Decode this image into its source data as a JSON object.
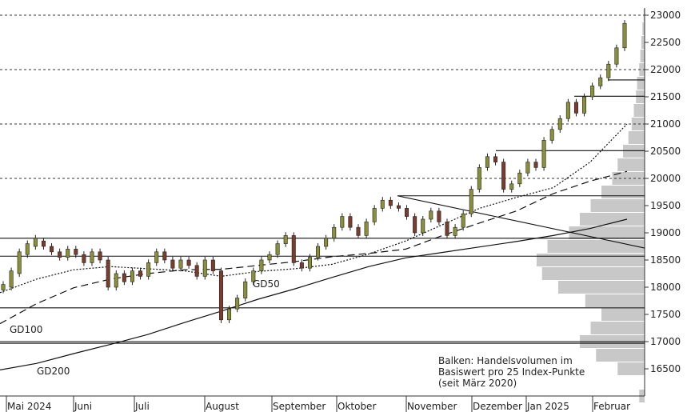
{
  "chart_data": {
    "type": "candlestick",
    "title": "",
    "xlabel": "",
    "ylabel": "",
    "ylim": [
      16000,
      23200
    ],
    "y_ticks": [
      16500,
      17000,
      17500,
      18000,
      18500,
      19000,
      19500,
      20000,
      20500,
      21000,
      21500,
      22000,
      22500,
      23000
    ],
    "y_tick_labels": [
      "16500",
      "17000",
      "17500",
      "18000",
      "18500",
      "19000",
      "19500",
      "20000",
      "20500",
      "21000",
      "21500",
      "22000",
      "22500",
      "23000"
    ],
    "x_ticks": [
      "Mai 2024",
      "Juni",
      "Juli",
      "August",
      "September",
      "Oktober",
      "November",
      "Dezember",
      "Jan 2025",
      "Februar"
    ],
    "dashed_gridlines": [
      20000,
      21000,
      22000,
      23000
    ],
    "support_resistance_lines": [
      {
        "from": "2024-05",
        "level": 16970
      },
      {
        "from": "2024-05",
        "level": 17000
      },
      {
        "from": "2024-05",
        "level": 17620
      },
      {
        "from": "2024-05",
        "level": 18570
      },
      {
        "from": "2024-05",
        "level": 18900
      },
      {
        "from": "2024-11",
        "level": 19680
      },
      {
        "from": "2024-12",
        "level": 20510
      },
      {
        "from": "2025-01",
        "level": 21510
      },
      {
        "from": "2025-02",
        "level": 21810
      }
    ],
    "trend_line": {
      "from": {
        "date": "2024-10-31",
        "value": 19680
      },
      "to": {
        "date": "2025-02-20",
        "value": 18720
      }
    },
    "moving_averages": [
      {
        "label": "GD50",
        "style": "dotted",
        "values": [
          17900,
          18150,
          18320,
          18380,
          18340,
          18300,
          18200,
          18290,
          18340,
          18420,
          18610,
          18850,
          19150,
          19450,
          19650,
          19830,
          20300,
          21000
        ]
      },
      {
        "label": "GD100",
        "style": "dashed",
        "values": [
          17330,
          17700,
          17990,
          18150,
          18250,
          18320,
          18330,
          18400,
          18470,
          18560,
          18620,
          18700,
          18950,
          19180,
          19400,
          19720,
          19950,
          20130
        ]
      },
      {
        "label": "GD200",
        "style": "solid",
        "values": [
          16480,
          16600,
          16780,
          16950,
          17130,
          17350,
          17560,
          17780,
          17970,
          18180,
          18380,
          18540,
          18640,
          18740,
          18840,
          18950,
          19080,
          19250
        ]
      }
    ],
    "ma_label_positions": [
      "GD50",
      "GD100",
      "GD200"
    ],
    "candles": [
      [
        17950,
        18050
      ],
      [
        18000,
        18300
      ],
      [
        18250,
        18650
      ],
      [
        18600,
        18800
      ],
      [
        18750,
        18900
      ],
      [
        18850,
        18750
      ],
      [
        18750,
        18650
      ],
      [
        18650,
        18550
      ],
      [
        18550,
        18700
      ],
      [
        18700,
        18600
      ],
      [
        18600,
        18450
      ],
      [
        18450,
        18650
      ],
      [
        18650,
        18500
      ],
      [
        18500,
        18000
      ],
      [
        18000,
        18250
      ],
      [
        18250,
        18100
      ],
      [
        18100,
        18300
      ],
      [
        18300,
        18200
      ],
      [
        18200,
        18450
      ],
      [
        18450,
        18650
      ],
      [
        18650,
        18500
      ],
      [
        18500,
        18350
      ],
      [
        18350,
        18500
      ],
      [
        18500,
        18400
      ],
      [
        18400,
        18200
      ],
      [
        18200,
        18500
      ],
      [
        18500,
        18300
      ],
      [
        18300,
        17400
      ],
      [
        17400,
        17600
      ],
      [
        17600,
        17800
      ],
      [
        17800,
        18100
      ],
      [
        18100,
        18300
      ],
      [
        18300,
        18500
      ],
      [
        18500,
        18600
      ],
      [
        18600,
        18800
      ],
      [
        18800,
        18950
      ],
      [
        18950,
        18450
      ],
      [
        18450,
        18350
      ],
      [
        18350,
        18550
      ],
      [
        18550,
        18750
      ],
      [
        18750,
        18900
      ],
      [
        18900,
        19100
      ],
      [
        19100,
        19300
      ],
      [
        19300,
        19100
      ],
      [
        19100,
        18950
      ],
      [
        18950,
        19200
      ],
      [
        19200,
        19450
      ],
      [
        19450,
        19600
      ],
      [
        19600,
        19500
      ],
      [
        19500,
        19450
      ],
      [
        19450,
        19300
      ],
      [
        19300,
        19000
      ],
      [
        19000,
        19250
      ],
      [
        19250,
        19400
      ],
      [
        19400,
        19200
      ],
      [
        19200,
        18950
      ],
      [
        18950,
        19100
      ],
      [
        19100,
        19350
      ],
      [
        19350,
        19800
      ],
      [
        19800,
        20200
      ],
      [
        20200,
        20400
      ],
      [
        20400,
        20300
      ],
      [
        20300,
        19800
      ],
      [
        19800,
        19900
      ],
      [
        19900,
        20100
      ],
      [
        20100,
        20300
      ],
      [
        20300,
        20200
      ],
      [
        20200,
        20700
      ],
      [
        20700,
        20900
      ],
      [
        20900,
        21100
      ],
      [
        21100,
        21400
      ],
      [
        21400,
        21200
      ],
      [
        21200,
        21500
      ],
      [
        21500,
        21700
      ],
      [
        21700,
        21850
      ],
      [
        21850,
        22100
      ],
      [
        22100,
        22400
      ],
      [
        22400,
        22850
      ]
    ],
    "volume_profile_note": "Balken: Handelsvolumen im Basiswert pro 25 Index-Punkte (seit März 2020)",
    "note_lines": [
      "Balken: Handelsvolumen im",
      "Basiswert pro 25 Index-Punkte",
      "(seit März 2020)"
    ],
    "volume_profile": [
      [
        16000,
        0.05
      ],
      [
        16500,
        0.25
      ],
      [
        16750,
        0.45
      ],
      [
        17000,
        0.6
      ],
      [
        17250,
        0.5
      ],
      [
        17500,
        0.4
      ],
      [
        17750,
        0.55
      ],
      [
        18000,
        0.8
      ],
      [
        18250,
        0.95
      ],
      [
        18500,
        1.0
      ],
      [
        18750,
        0.9
      ],
      [
        19000,
        0.7
      ],
      [
        19250,
        0.6
      ],
      [
        19500,
        0.5
      ],
      [
        19750,
        0.4
      ],
      [
        20000,
        0.3
      ],
      [
        20250,
        0.25
      ],
      [
        20500,
        0.2
      ],
      [
        20750,
        0.15
      ],
      [
        21000,
        0.12
      ],
      [
        21250,
        0.1
      ],
      [
        21500,
        0.08
      ],
      [
        21750,
        0.07
      ],
      [
        22000,
        0.05
      ],
      [
        22250,
        0.04
      ],
      [
        22500,
        0.03
      ],
      [
        22750,
        0.02
      ],
      [
        23000,
        0.01
      ]
    ],
    "colors": {
      "up": "#8a8f3a",
      "down": "#7a3d2d",
      "wick": "#222222",
      "grid": "#333333",
      "volume": "#9a9a9a"
    }
  }
}
